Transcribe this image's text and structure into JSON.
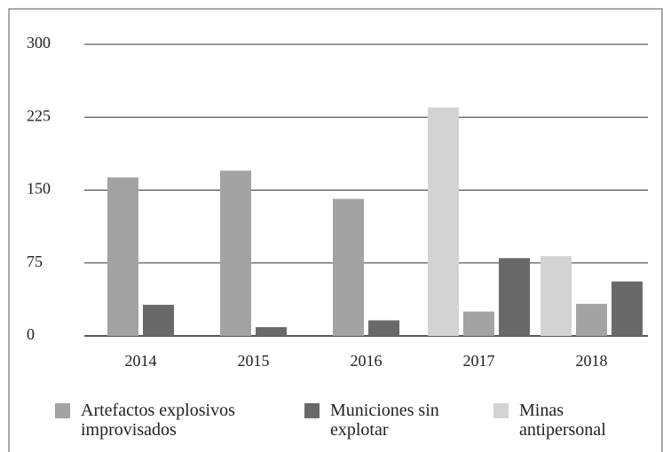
{
  "chart_data": {
    "type": "bar",
    "categories": [
      "2014",
      "2015",
      "2016",
      "2017",
      "2018"
    ],
    "series": [
      {
        "name": "Minas antipersonal",
        "color": "#d3d3d5",
        "values": [
          null,
          null,
          null,
          235,
          82
        ]
      },
      {
        "name": "Artefactos explosivos improvisados",
        "color": "#a3a3a6",
        "values": [
          163,
          170,
          141,
          25,
          33
        ]
      },
      {
        "name": "Municiones sin explotar",
        "color": "#69696c",
        "values": [
          32,
          9,
          16,
          80,
          56
        ]
      }
    ],
    "legend_order": [
      1,
      2,
      0
    ],
    "ylim": [
      0,
      300
    ],
    "yticks": [
      0,
      75,
      150,
      225,
      300
    ],
    "grid": true
  }
}
